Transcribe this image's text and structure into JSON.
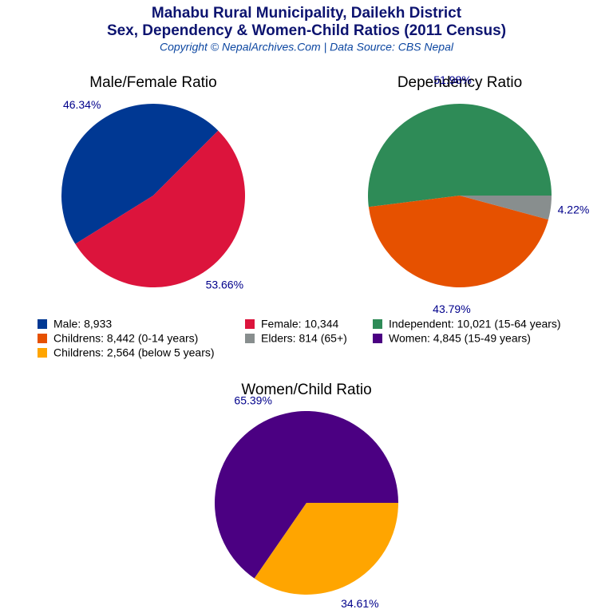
{
  "header": {
    "title": "Mahabu Rural Municipality, Dailekh District",
    "subtitle": "Sex, Dependency & Women-Child Ratios (2011 Census)",
    "source": "Copyright © NepalArchives.Com | Data Source: CBS Nepal"
  },
  "chart_data": [
    {
      "type": "pie",
      "title": "Male/Female Ratio",
      "start_angle": 45,
      "categories": [
        "Male: 8,933",
        "Female: 10,344"
      ],
      "values": [
        46.34,
        53.66
      ],
      "value_labels": [
        "46.34%",
        "53.66%"
      ],
      "colors": [
        "#003893",
        "#dc143c"
      ]
    },
    {
      "type": "pie",
      "title": "Dependency Ratio",
      "start_angle": 0,
      "categories": [
        "Independent: 10,021 (15-64 years)",
        "Childrens: 8,442 (0-14 years)",
        "Elders: 814 (65+)"
      ],
      "values": [
        51.98,
        43.79,
        4.22
      ],
      "value_labels": [
        "51.98%",
        "43.79%",
        "4.22%"
      ],
      "colors": [
        "#2e8b57",
        "#e65100",
        "#888e8e"
      ]
    },
    {
      "type": "pie",
      "title": "Women/Child Ratio",
      "start_angle": 0,
      "categories": [
        "Women: 4,845 (15-49 years)",
        "Childrens: 2,564 (below 5 years)"
      ],
      "values": [
        65.39,
        34.61
      ],
      "value_labels": [
        "65.39%",
        "34.61%"
      ],
      "colors": [
        "#4b0082",
        "#ffa500"
      ]
    }
  ]
}
